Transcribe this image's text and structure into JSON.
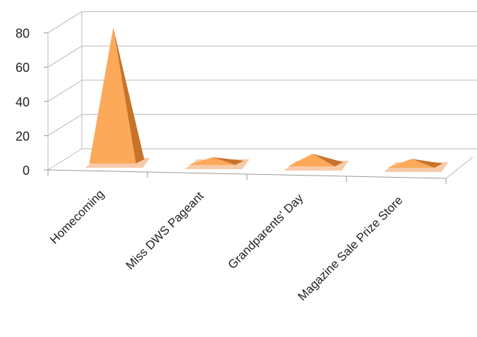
{
  "chart_data": {
    "type": "bar",
    "shape": "3d-pyramid",
    "categories": [
      "Homecoming",
      "Miss DWS Pageant",
      "Grandparents' Day",
      "Magazine Sale Prize Store"
    ],
    "values": [
      79,
      5,
      7,
      4
    ],
    "ylim": [
      0,
      80
    ],
    "yticks": [
      0,
      20,
      40,
      60,
      80
    ],
    "grid": true,
    "legend": "none"
  },
  "colors": {
    "bar_light": "#FCA95A",
    "bar_dark": "#C8732C",
    "floor": "#F0A065",
    "grid": "#b8b8b8"
  }
}
